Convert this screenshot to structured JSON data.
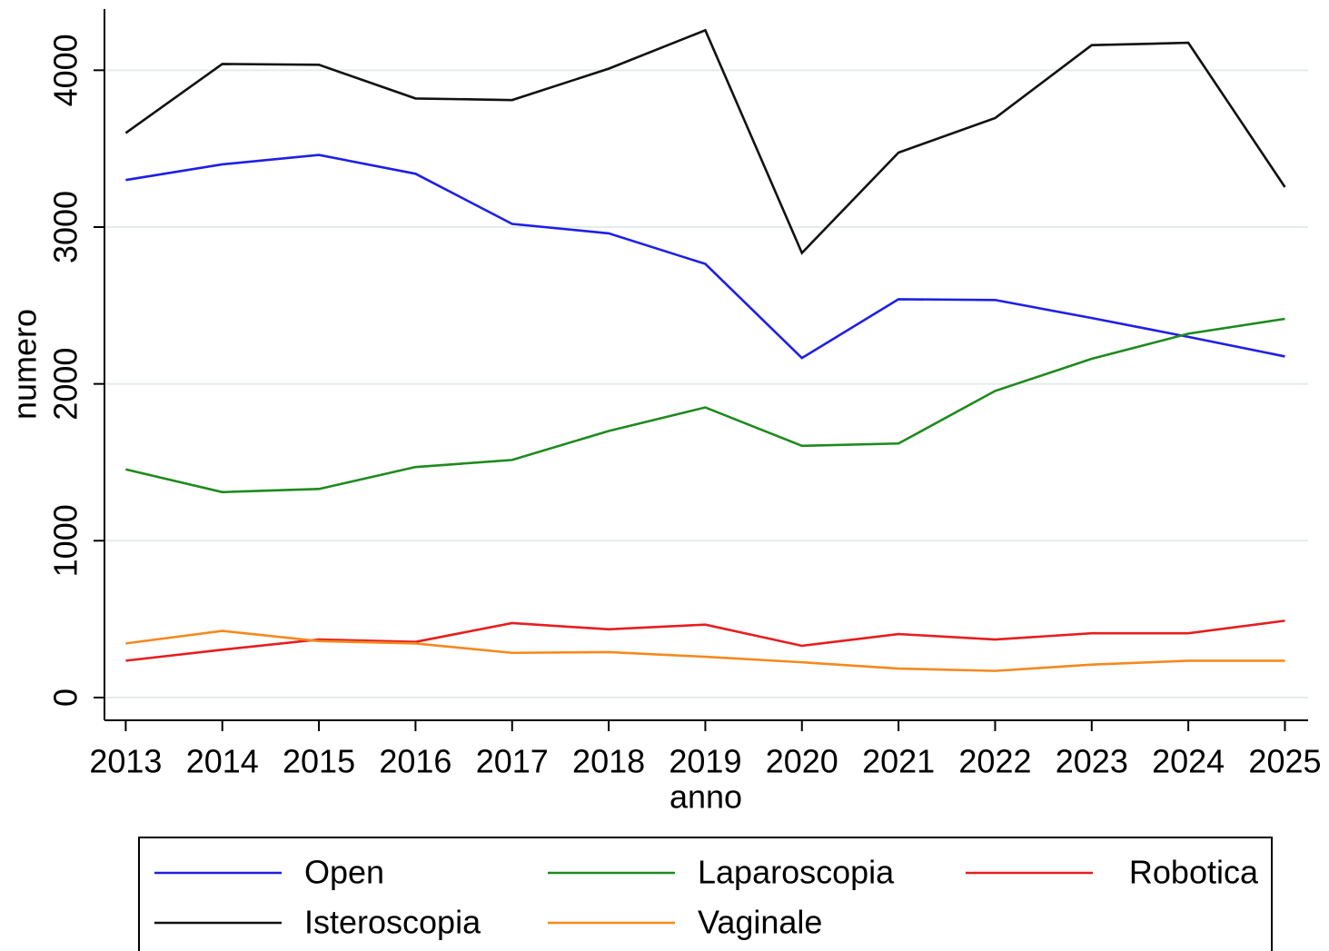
{
  "chart_data": {
    "type": "line",
    "x_label": "anno",
    "y_label": "numero",
    "x": [
      2013,
      2014,
      2015,
      2016,
      2017,
      2018,
      2019,
      2020,
      2021,
      2022,
      2023,
      2024,
      2025
    ],
    "series": [
      {
        "name": "Open",
        "color": "#1f1fe6",
        "values": [
          3300,
          3400,
          3460,
          3340,
          3020,
          2960,
          2765,
          2165,
          2540,
          2535,
          2420,
          2300,
          2175
        ]
      },
      {
        "name": "Laparoscopia",
        "color": "#1e8a1e",
        "values": [
          1455,
          1310,
          1330,
          1470,
          1515,
          1700,
          1850,
          1605,
          1620,
          1955,
          2160,
          2320,
          2415
        ]
      },
      {
        "name": "Robotica",
        "color": "#e61e1e",
        "values": [
          235,
          305,
          370,
          355,
          475,
          435,
          465,
          330,
          405,
          370,
          410,
          410,
          490
        ]
      },
      {
        "name": "Isteroscopia",
        "color": "#111111",
        "values": [
          3600,
          4040,
          4035,
          3820,
          3810,
          4010,
          4255,
          2835,
          3475,
          3695,
          4160,
          4175,
          3255
        ]
      },
      {
        "name": "Vaginale",
        "color": "#f5891e",
        "values": [
          345,
          425,
          360,
          345,
          285,
          290,
          260,
          225,
          185,
          170,
          210,
          235,
          235
        ]
      }
    ],
    "xlim": [
      2012.78,
      2025.24
    ],
    "xticks": [
      2013,
      2014,
      2015,
      2016,
      2017,
      2018,
      2019,
      2020,
      2021,
      2022,
      2023,
      2024,
      2025
    ],
    "ylim": [
      -145,
      4390
    ],
    "yticks": [
      0,
      1000,
      2000,
      3000,
      4000
    ],
    "grid": true,
    "legend": "bottom"
  }
}
